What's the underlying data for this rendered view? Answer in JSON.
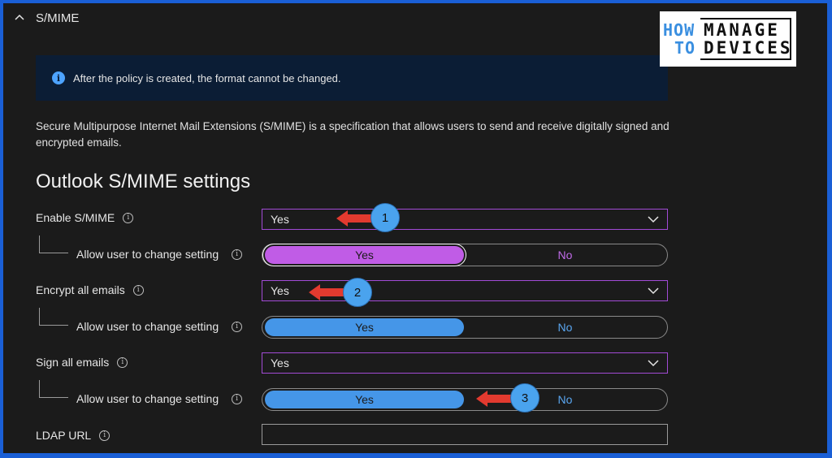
{
  "section": {
    "title": "S/MIME"
  },
  "info_banner": {
    "icon": "info-icon",
    "message": "After the policy is created, the format cannot be changed."
  },
  "description": "Secure Multipurpose Internet Mail Extensions (S/MIME) is a specification that allows users to send and receive digitally signed and encrypted emails.",
  "settings_title": "Outlook S/MIME settings",
  "rows": {
    "enable_smime": {
      "label": "Enable S/MIME",
      "value": "Yes"
    },
    "enable_allow": {
      "label": "Allow user to change setting",
      "yes": "Yes",
      "no": "No",
      "selected": "Yes"
    },
    "encrypt_all": {
      "label": "Encrypt all emails",
      "value": "Yes"
    },
    "encrypt_allow": {
      "label": "Allow user to change setting",
      "yes": "Yes",
      "no": "No",
      "selected": "Yes"
    },
    "sign_all": {
      "label": "Sign all emails",
      "value": "Yes"
    },
    "sign_allow": {
      "label": "Allow user to change setting",
      "yes": "Yes",
      "no": "No",
      "selected": "Yes"
    },
    "ldap_url": {
      "label": "LDAP URL",
      "value": ""
    }
  },
  "callouts": [
    "1",
    "2",
    "3"
  ],
  "logo": {
    "how": "HOW",
    "to": "TO",
    "manage": "MANAGE",
    "devices": "DEVICES"
  },
  "colors": {
    "highlight_toggle": "#c05ce6",
    "toggle_yes": "#4596e8",
    "toggle_no_text_blue": "#5aa6f0",
    "toggle_no_text_purple": "#c06be8",
    "select_border": "#a24bd6",
    "arrow": "#e23a2f",
    "callout": "#4aa3ee"
  }
}
